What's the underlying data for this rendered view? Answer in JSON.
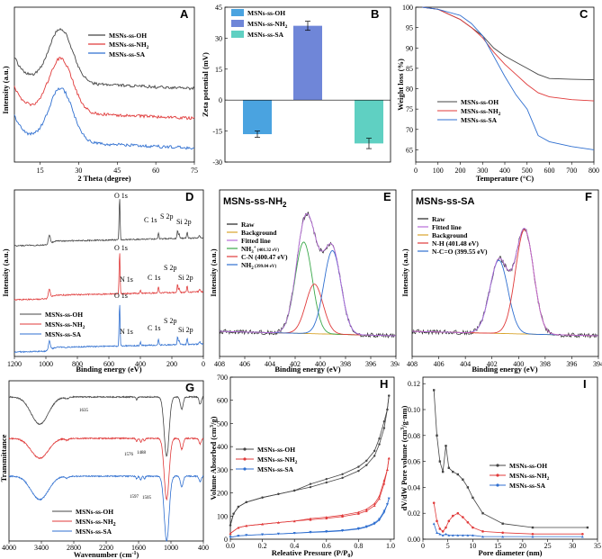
{
  "colors": {
    "oh": "#444444",
    "nh2": "#e03a3a",
    "sa": "#2f6fd0",
    "bar_oh": "#4aa3e0",
    "bar_nh2": "#6f86d8",
    "bar_sa": "#5fd0c2"
  },
  "chart_data": [
    {
      "panel": "A",
      "type": "line",
      "xlabel": "2 Theta (degree)",
      "ylabel": "Intensity (a.u.)",
      "xlim": [
        5,
        75
      ],
      "xticks": [
        15,
        30,
        45,
        60,
        75
      ],
      "legend": [
        "MSNs-ss-OH",
        "MSNs-ss-NH2"
      ],
      "legend_sub": "2",
      "legend3": "MSNs-ss-SA",
      "series": [
        {
          "name": "MSNs-ss-OH",
          "offset": 60,
          "peak": 40,
          "x": [
            5,
            10,
            15,
            20,
            23,
            26,
            30,
            40,
            50,
            60,
            75
          ]
        },
        {
          "name": "MSNs-ss-NH2",
          "offset": 38,
          "peak": 40,
          "x": [
            5,
            10,
            15,
            20,
            23,
            26,
            30,
            40,
            50,
            60,
            75
          ]
        },
        {
          "name": "MSNs-ss-SA",
          "offset": 16,
          "peak": 40,
          "x": [
            5,
            10,
            15,
            20,
            23,
            26,
            30,
            40,
            50,
            60,
            75
          ]
        }
      ]
    },
    {
      "panel": "B",
      "type": "bar",
      "ylabel": "Zeta potential (mV)",
      "ylim": [
        -30,
        45
      ],
      "yticks": [
        -30,
        -15,
        0,
        15,
        30,
        45
      ],
      "categories": [
        "MSNs-ss-OH",
        "MSNs-ss-NH2",
        "MSNs-ss-SA"
      ],
      "values": [
        -16.5,
        36,
        -21
      ],
      "errors": [
        1.5,
        2.2,
        2.5
      ]
    },
    {
      "panel": "C",
      "type": "line",
      "xlabel": "Temperature (°C)",
      "ylabel": "Weight loss (%)",
      "xlim": [
        0,
        800
      ],
      "ylim": [
        62,
        100
      ],
      "xticks": [
        0,
        100,
        200,
        300,
        400,
        500,
        600,
        700,
        800
      ],
      "yticks": [
        65,
        70,
        75,
        80,
        85,
        90,
        95,
        100
      ],
      "series": [
        {
          "name": "MSNs-ss-OH",
          "x": [
            30,
            100,
            200,
            250,
            300,
            350,
            400,
            450,
            500,
            550,
            600,
            700,
            800
          ],
          "y": [
            100,
            99.5,
            97,
            95,
            93,
            90,
            88,
            86.5,
            85,
            83.5,
            82.5,
            82.3,
            82.2
          ]
        },
        {
          "name": "MSNs-ss-NH2",
          "x": [
            30,
            100,
            200,
            250,
            300,
            350,
            400,
            450,
            500,
            550,
            600,
            700,
            800
          ],
          "y": [
            100,
            99.5,
            97,
            95,
            92.5,
            89,
            86,
            83.5,
            81,
            79,
            78,
            77.3,
            77
          ]
        },
        {
          "name": "MSNs-ss-SA",
          "x": [
            30,
            100,
            200,
            250,
            300,
            350,
            400,
            450,
            500,
            550,
            600,
            700,
            800
          ],
          "y": [
            100,
            99.5,
            98,
            96,
            93,
            88,
            83,
            78.5,
            75,
            68.5,
            67,
            65.8,
            65
          ]
        }
      ]
    },
    {
      "panel": "D",
      "type": "line",
      "xlabel": "Binding energy (eV)",
      "ylabel": "Intensity (a.u.)",
      "xlim": [
        1200,
        0
      ],
      "xticks": [
        1200,
        1000,
        800,
        600,
        400,
        200,
        0
      ],
      "peaks": [
        "O 1s",
        "C 1s",
        "S 2p",
        "Si 2p",
        "N 1s"
      ]
    },
    {
      "panel": "E",
      "type": "line",
      "title": "MSNs-ss-NH",
      "xlabel": "Binding energy (eV)",
      "ylabel": "Intensity (a.u.)",
      "xlim": [
        408,
        394
      ],
      "xticks": [
        408,
        406,
        404,
        402,
        400,
        398,
        396,
        394
      ],
      "legend": [
        "Raw",
        "Background",
        "Fitted line",
        "NH3+ (401.32 eV)",
        "C-N (400.47 eV)",
        "NH2 (399.04 eV)"
      ],
      "components": [
        {
          "center": 401.32,
          "height": 70
        },
        {
          "center": 400.47,
          "height": 38
        },
        {
          "center": 399.04,
          "height": 64
        }
      ]
    },
    {
      "panel": "F",
      "type": "line",
      "title": "MSNs-ss-SA",
      "xlabel": "Binding energy (eV)",
      "ylabel": "Intensity (a.u.)",
      "xlim": [
        408,
        394
      ],
      "xticks": [
        408,
        406,
        404,
        402,
        400,
        398,
        396,
        394
      ],
      "legend": [
        "Raw",
        "Fitted line",
        "Background",
        "N-H (401.48 eV)",
        "N-C=O (399.55 eV)"
      ],
      "components": [
        {
          "center": 401.48,
          "height": 56
        },
        {
          "center": 399.55,
          "height": 80
        }
      ]
    },
    {
      "panel": "G",
      "type": "line",
      "xlabel": "Wavenumber (cm",
      "ylabel": "Transmittance",
      "xlim": [
        4000,
        400
      ],
      "xticks": [
        4000,
        3400,
        2800,
        2200,
        1600,
        1000,
        400
      ],
      "annotations": [
        "1635",
        "1576",
        "1488",
        "1597",
        "1505"
      ]
    },
    {
      "panel": "H",
      "type": "line",
      "xlabel": "Releative Pressure (P/P",
      "ylabel": "Volume Absorbed (cm",
      "xlim": [
        0,
        1
      ],
      "ylim": [
        0,
        700
      ],
      "xticks": [
        0.0,
        0.2,
        0.4,
        0.6,
        0.8,
        1.0
      ],
      "yticks": [
        0,
        100,
        200,
        300,
        400,
        500,
        600,
        700
      ],
      "series": [
        {
          "name": "MSNs-ss-OH",
          "x": [
            0.0,
            0.02,
            0.05,
            0.1,
            0.2,
            0.3,
            0.4,
            0.5,
            0.6,
            0.7,
            0.8,
            0.85,
            0.9,
            0.93,
            0.96,
            0.98,
            0.99
          ],
          "y": [
            60,
            110,
            140,
            160,
            180,
            195,
            210,
            225,
            245,
            265,
            295,
            320,
            360,
            410,
            480,
            560,
            620
          ]
        },
        {
          "name": "MSNs-ss-NH2",
          "x": [
            0.0,
            0.05,
            0.1,
            0.2,
            0.3,
            0.4,
            0.5,
            0.6,
            0.7,
            0.8,
            0.85,
            0.9,
            0.93,
            0.96,
            0.98,
            0.99
          ],
          "y": [
            25,
            50,
            58,
            65,
            72,
            78,
            84,
            90,
            98,
            110,
            122,
            145,
            175,
            240,
            300,
            350
          ]
        },
        {
          "name": "MSNs-ss-SA",
          "x": [
            0.0,
            0.05,
            0.1,
            0.2,
            0.3,
            0.4,
            0.5,
            0.6,
            0.7,
            0.8,
            0.85,
            0.9,
            0.93,
            0.96,
            0.98,
            0.99
          ],
          "y": [
            8,
            14,
            17,
            20,
            23,
            26,
            29,
            32,
            36,
            44,
            52,
            66,
            82,
            115,
            150,
            175
          ]
        }
      ]
    },
    {
      "panel": "I",
      "type": "line",
      "xlabel": "Pore diameter (nm)",
      "ylabel": "dV/dW Pore volume (cm",
      "xlim": [
        0,
        35
      ],
      "ylim": [
        0,
        0.125
      ],
      "xticks": [
        0,
        5,
        10,
        15,
        20,
        25,
        30,
        35
      ],
      "yticks": [
        0.0,
        0.02,
        0.04,
        0.06,
        0.08,
        0.1,
        0.12
      ],
      "series": [
        {
          "name": "MSNs-ss-OH",
          "x": [
            2.2,
            2.8,
            3.4,
            4.0,
            4.6,
            5.2,
            6,
            7,
            8,
            9,
            10,
            12,
            16,
            22,
            33
          ],
          "y": [
            0.115,
            0.08,
            0.06,
            0.052,
            0.072,
            0.055,
            0.052,
            0.05,
            0.046,
            0.04,
            0.032,
            0.02,
            0.012,
            0.009,
            0.009
          ]
        },
        {
          "name": "MSNs-ss-NH2",
          "x": [
            2.2,
            2.8,
            3.4,
            4.0,
            4.6,
            5.2,
            6,
            7,
            8,
            9,
            10,
            12,
            16,
            22,
            32
          ],
          "y": [
            0.028,
            0.014,
            0.008,
            0.006,
            0.009,
            0.014,
            0.018,
            0.02,
            0.017,
            0.013,
            0.009,
            0.006,
            0.005,
            0.004,
            0.004
          ]
        },
        {
          "name": "MSNs-ss-SA",
          "x": [
            2.2,
            2.8,
            3.4,
            4.0,
            4.6,
            5.2,
            6,
            7,
            8,
            9,
            10,
            12,
            16,
            22,
            32
          ],
          "y": [
            0.012,
            0.005,
            0.004,
            0.003,
            0.004,
            0.003,
            0.003,
            0.003,
            0.003,
            0.003,
            0.003,
            0.002,
            0.002,
            0.002,
            0.002
          ]
        }
      ]
    }
  ],
  "text": {
    "A": "A",
    "B": "B",
    "C": "C",
    "D": "D",
    "E": "E",
    "F": "F",
    "G": "G",
    "H": "H",
    "I": "I",
    "oh": "MSNs-ss-OH",
    "nh2": "MSNs-ss-NH",
    "sub2": "2",
    "sa": "MSNs-ss-SA",
    "raw": "Raw",
    "bg": "Background",
    "fit": "Fitted line",
    "nh3": "NH",
    "nh3sup": "3",
    "nh3plus": "+",
    "nh3ev": " (401.32 eV)",
    "cn": "C-N (400.47 eV)",
    "nh2ev": " (399.04 eV)",
    "nh": "N-H (401.48 eV)",
    "nco": "N-C=O (399.55 eV)",
    "o1s": "O 1s",
    "c1s": "C 1s",
    "s2p": "S 2p",
    "si2p": "Si 2p",
    "n1s": "N 1s",
    "cm": "cm",
    "sup_minus1": "-1",
    "close": ")",
    "sup3": "3",
    "g": "/g)",
    "sup3g": "/g·nm)",
    "p0": "0",
    "pslash": "P/P",
    "paren": ")"
  }
}
